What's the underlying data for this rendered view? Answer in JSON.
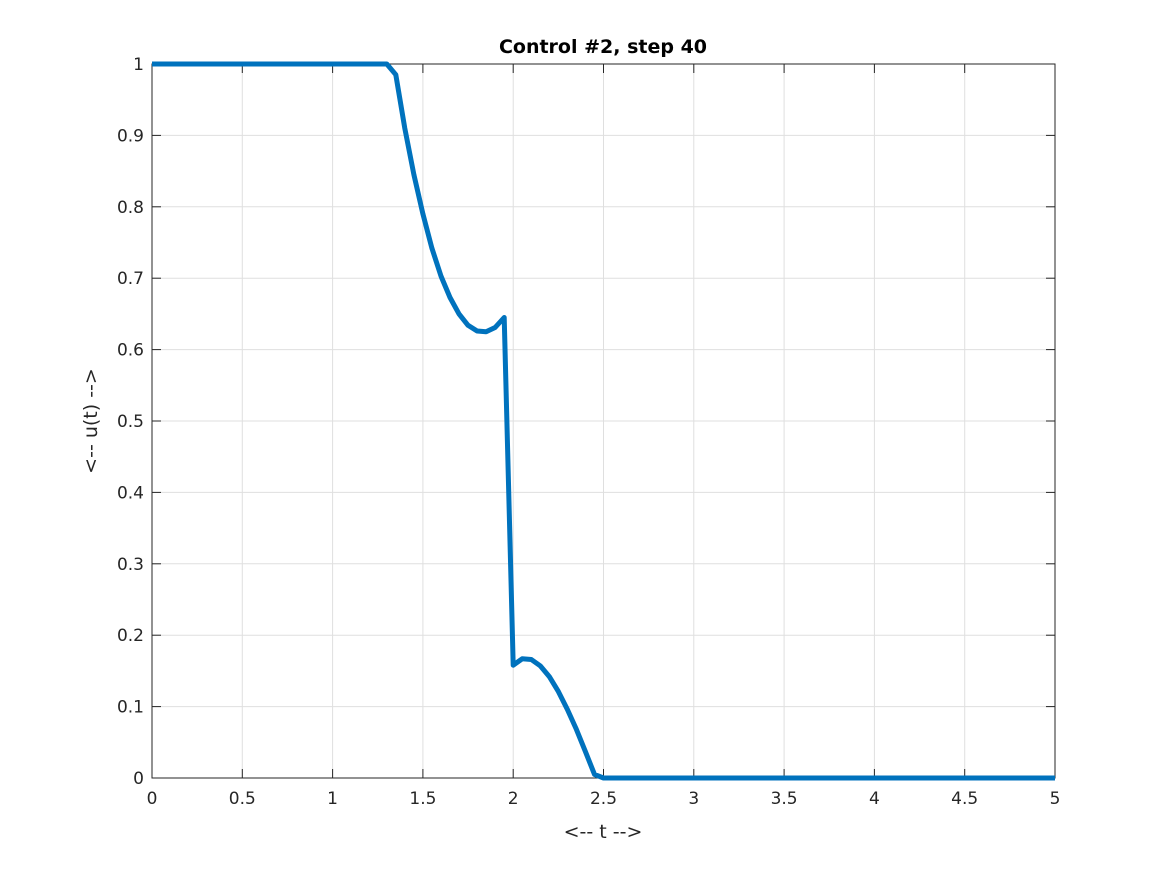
{
  "chart_data": {
    "type": "line",
    "title": "Control #2, step 40",
    "xlabel": "<-- t -->",
    "ylabel": "<-- u(t) -->",
    "xlim": [
      0,
      5
    ],
    "ylim": [
      0,
      1
    ],
    "xticks": [
      0,
      0.5,
      1,
      1.5,
      2,
      2.5,
      3,
      3.5,
      4,
      4.5,
      5
    ],
    "xtick_labels": [
      "0",
      "0.5",
      "1",
      "1.5",
      "2",
      "2.5",
      "3",
      "3.5",
      "4",
      "4.5",
      "5"
    ],
    "yticks": [
      0,
      0.1,
      0.2,
      0.3,
      0.4,
      0.5,
      0.6,
      0.7,
      0.8,
      0.9,
      1
    ],
    "ytick_labels": [
      "0",
      "0.1",
      "0.2",
      "0.3",
      "0.4",
      "0.5",
      "0.6",
      "0.7",
      "0.8",
      "0.9",
      "1"
    ],
    "grid": true,
    "line_color": "#0072BD",
    "series": [
      {
        "x": [
          0,
          1.3,
          1.35,
          1.4,
          1.45,
          1.5,
          1.55,
          1.6,
          1.65,
          1.7,
          1.75,
          1.8,
          1.85,
          1.9,
          1.95,
          2.0,
          2.05,
          2.1,
          2.15,
          2.2,
          2.25,
          2.3,
          2.35,
          2.4,
          2.45,
          2.5,
          5
        ],
        "y": [
          1,
          1,
          0.985,
          0.91,
          0.845,
          0.79,
          0.742,
          0.703,
          0.673,
          0.65,
          0.634,
          0.626,
          0.625,
          0.631,
          0.645,
          0.158,
          0.167,
          0.166,
          0.157,
          0.142,
          0.121,
          0.096,
          0.068,
          0.037,
          0.005,
          0,
          0
        ]
      }
    ]
  }
}
